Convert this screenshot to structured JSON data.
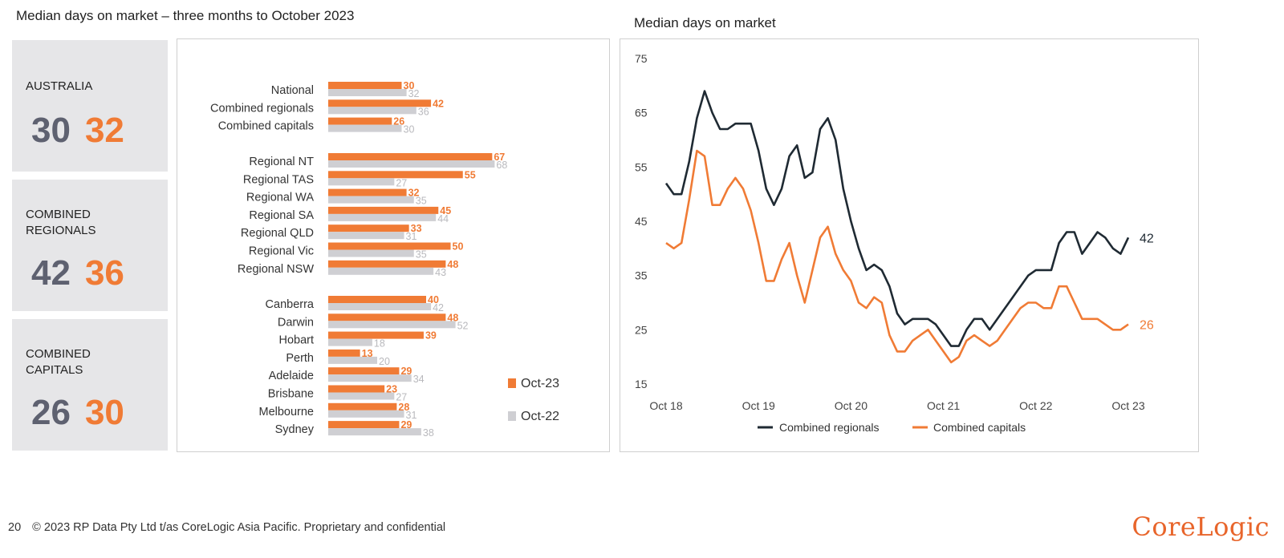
{
  "page": {
    "left_title": "Median days on market – three months to October 2023",
    "right_title": "Median days on market",
    "footer_page": "20",
    "footer_text": "© 2023 RP Data Pty Ltd t/as CoreLogic Asia Pacific. Proprietary and confidential",
    "logo": "CoreLogic"
  },
  "stats": [
    {
      "label": "AUSTRALIA",
      "grey": "30",
      "orange": "32"
    },
    {
      "label": "COMBINED\nREGIONALS",
      "grey": "42",
      "orange": "36"
    },
    {
      "label": "COMBINED\nCAPITALS",
      "grey": "26",
      "orange": "30"
    }
  ],
  "colors": {
    "orange": "#f07b35",
    "grey": "#cfcfd3",
    "dark": "#1f2a33",
    "stat_grey": "#5e6170"
  },
  "chart_data": [
    {
      "type": "bar",
      "orientation": "horizontal",
      "groups": [
        [
          "National",
          "Combined regionals",
          "Combined capitals"
        ],
        [
          "Regional NT",
          "Regional TAS",
          "Regional WA",
          "Regional SA",
          "Regional QLD",
          "Regional Vic",
          "Regional NSW"
        ],
        [
          "Canberra",
          "Darwin",
          "Hobart",
          "Perth",
          "Adelaide",
          "Brisbane",
          "Melbourne",
          "Sydney"
        ]
      ],
      "categories": [
        "National",
        "Combined regionals",
        "Combined capitals",
        "Regional NT",
        "Regional TAS",
        "Regional WA",
        "Regional SA",
        "Regional QLD",
        "Regional Vic",
        "Regional NSW",
        "Canberra",
        "Darwin",
        "Hobart",
        "Perth",
        "Adelaide",
        "Brisbane",
        "Melbourne",
        "Sydney"
      ],
      "series": [
        {
          "name": "Oct-23",
          "color": "#f07b35",
          "values": [
            30,
            42,
            26,
            67,
            55,
            32,
            45,
            33,
            50,
            48,
            40,
            48,
            39,
            13,
            29,
            23,
            28,
            29
          ]
        },
        {
          "name": "Oct-22",
          "color": "#cfcfd3",
          "values": [
            32,
            36,
            30,
            68,
            27,
            35,
            44,
            31,
            35,
            43,
            42,
            52,
            18,
            20,
            34,
            27,
            31,
            38
          ]
        }
      ],
      "legend": "bottom-right"
    },
    {
      "type": "line",
      "title": "Median days on market",
      "x_ticks": [
        "Oct 18",
        "Oct 19",
        "Oct 20",
        "Oct 21",
        "Oct 22",
        "Oct 23"
      ],
      "y_ticks": [
        15,
        25,
        35,
        45,
        55,
        65,
        75
      ],
      "ylim": [
        15,
        75
      ],
      "series": [
        {
          "name": "Combined regionals",
          "color": "#1f2a33",
          "end_label": "42",
          "values": [
            52,
            50,
            50,
            56,
            64,
            69,
            65,
            62,
            62,
            63,
            63,
            63,
            58,
            51,
            48,
            51,
            57,
            59,
            53,
            54,
            62,
            64,
            60,
            51,
            45,
            40,
            36,
            37,
            36,
            33,
            28,
            26,
            27,
            27,
            27,
            26,
            24,
            22,
            22,
            25,
            27,
            27,
            25,
            27,
            29,
            31,
            33,
            35,
            36,
            36,
            36,
            41,
            43,
            43,
            39,
            41,
            43,
            42,
            40,
            39,
            42
          ]
        },
        {
          "name": "Combined capitals",
          "color": "#f07b35",
          "end_label": "26",
          "values": [
            41,
            40,
            41,
            49,
            58,
            57,
            48,
            48,
            51,
            53,
            51,
            47,
            41,
            34,
            34,
            38,
            41,
            35,
            30,
            36,
            42,
            44,
            39,
            36,
            34,
            30,
            29,
            31,
            30,
            24,
            21,
            21,
            23,
            24,
            25,
            23,
            21,
            19,
            20,
            23,
            24,
            23,
            22,
            23,
            25,
            27,
            29,
            30,
            30,
            29,
            29,
            33,
            33,
            30,
            27,
            27,
            27,
            26,
            25,
            25,
            26
          ]
        }
      ],
      "legend": "bottom"
    }
  ]
}
